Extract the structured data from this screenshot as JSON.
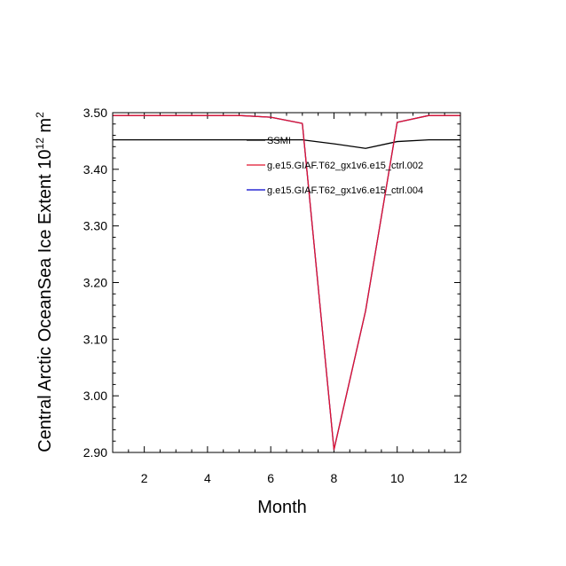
{
  "chart_data": {
    "type": "line",
    "xlabel": "Month",
    "ylabel": {
      "prefix": "Central Arctic OceanSea Ice Extent 10",
      "sup": "12",
      "unit": " m",
      "unit_sup": "2"
    },
    "xlim": [
      1,
      12
    ],
    "ylim": [
      2.9,
      3.5
    ],
    "x_ticks": [
      2,
      4,
      6,
      8,
      10,
      12
    ],
    "y_ticks": [
      "2.90",
      "3.00",
      "3.10",
      "3.20",
      "3.30",
      "3.40",
      "3.50"
    ],
    "legend_position": "top-right",
    "x": [
      1,
      2,
      3,
      4,
      5,
      6,
      7,
      8,
      9,
      10,
      11,
      12
    ],
    "series": [
      {
        "name": "SSMI",
        "color": "#000000",
        "values": [
          3.452,
          3.452,
          3.452,
          3.452,
          3.452,
          3.452,
          3.452,
          3.445,
          3.437,
          3.449,
          3.452,
          3.452
        ]
      },
      {
        "name": "g.e15.GIAF.T62_gx1v6.e15_ctrl.004",
        "color": "#0000cc",
        "values": [
          3.495,
          3.495,
          3.495,
          3.495,
          3.495,
          3.492,
          3.481,
          2.905,
          3.15,
          3.483,
          3.495,
          3.495
        ]
      },
      {
        "name": "g.e15.GIAF.T62_gx1v6.e15_ctrl.002",
        "color": "#e0142d",
        "values": [
          3.495,
          3.495,
          3.495,
          3.495,
          3.495,
          3.492,
          3.481,
          2.905,
          3.15,
          3.483,
          3.495,
          3.495
        ]
      }
    ]
  }
}
